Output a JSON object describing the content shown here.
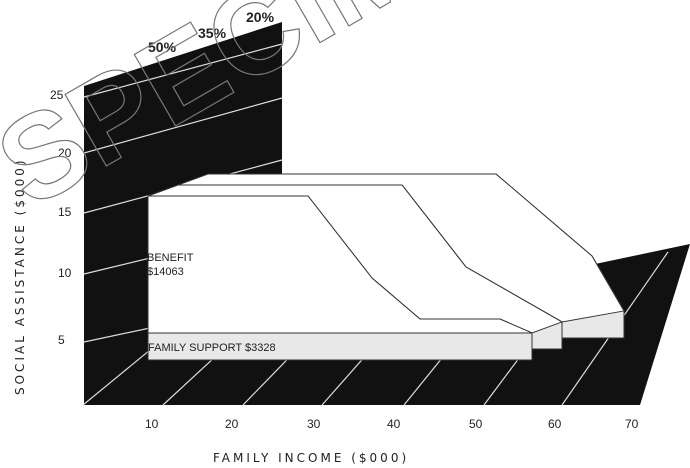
{
  "chart_data": {
    "type": "area",
    "subtype": "3d-stepped",
    "title": "",
    "xlabel": "FAMILY INCOME ($000)",
    "ylabel": "SOCIAL ASSISTANCE ($000)",
    "x_ticks": [
      "10",
      "20",
      "30",
      "40",
      "50",
      "60",
      "70"
    ],
    "y_ticks": [
      "5",
      "10",
      "15",
      "20",
      "25"
    ],
    "xlim": [
      0,
      70
    ],
    "ylim": [
      0,
      25
    ],
    "series": [
      {
        "name": "50%",
        "x": [
          8,
          28,
          36,
          42,
          52,
          56
        ],
        "y": [
          20,
          20,
          10,
          5,
          5,
          3.3
        ]
      },
      {
        "name": "35%",
        "x": [
          8,
          36,
          44,
          56
        ],
        "y": [
          20,
          20,
          10,
          3.3
        ]
      },
      {
        "name": "20%",
        "x": [
          8,
          44,
          56,
          60
        ],
        "y": [
          20,
          20,
          10,
          3.3
        ]
      }
    ],
    "annotations": [
      {
        "label": "BENEFIT",
        "value": "$14063"
      },
      {
        "label": "FAMILY SUPPORT $3328"
      }
    ],
    "colors": {
      "floor": "#111111",
      "benefit": "#ffffff",
      "support": "#e8e8e8",
      "stroke": "#333333"
    }
  },
  "watermark": "SPECIMEN"
}
